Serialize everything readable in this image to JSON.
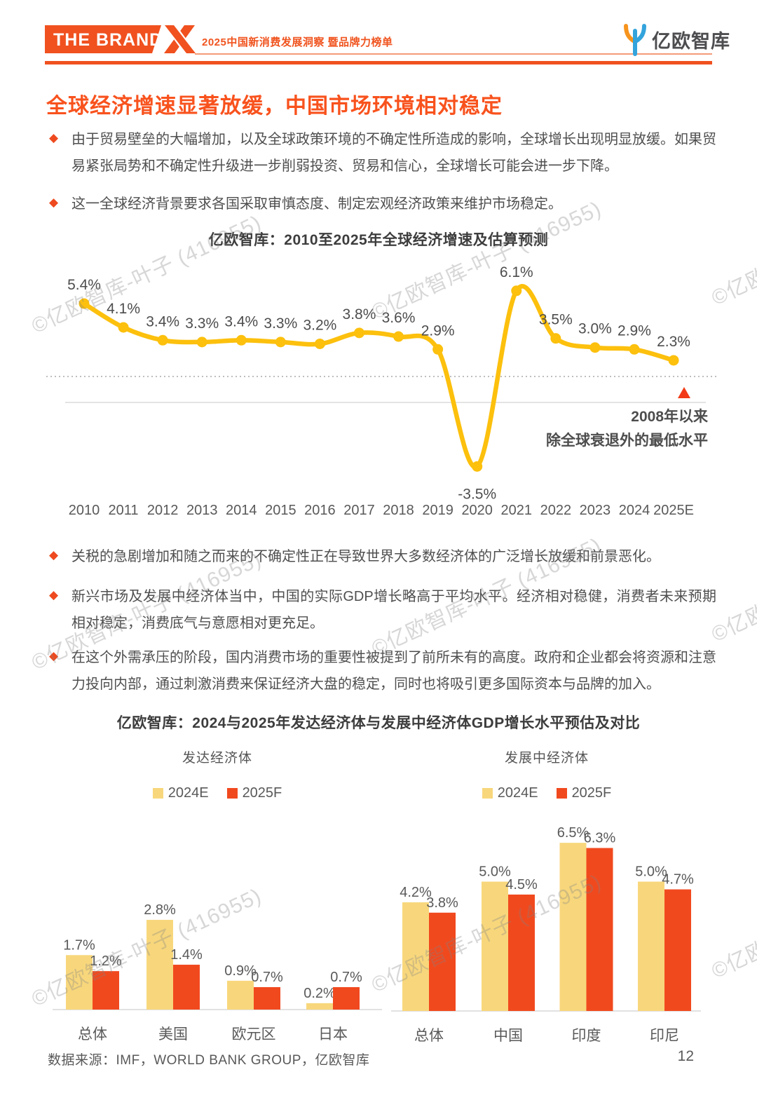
{
  "header": {
    "logo_text": "THE BRAND",
    "doc_subtitle": "2025中国新消费发展洞察 暨品牌力榜单",
    "brand_right": "亿欧智库"
  },
  "page_title": "全球经济增速显著放缓，中国市场环境相对稳定",
  "icons": {
    "bullet": "◆"
  },
  "bullets": [
    "由于贸易壁垒的大幅增加，以及全球政策环境的不确定性所造成的影响，全球增长出现明显放缓。如果贸易紧张局势和不确定性升级进一步削弱投资、贸易和信心，全球增长可能会进一步下降。",
    "这一全球经济背景要求各国采取审慎态度、制定宏观经济政策来维护市场稳定。",
    "关税的急剧增加和随之而来的不确定性正在导致世界大多数经济体的广泛增长放缓和前景恶化。",
    "新兴市场及发展中经济体当中，中国的实际GDP增长略高于平均水平。经济相对稳健，消费者未来预期相对稳定，消费底气与意愿相对更充足。",
    "在这个外需承压的阶段，国内消费市场的重要性被提到了前所未有的高度。政府和企业都会将资源和注意力投向内部，通过刺激消费来保证经济大盘的稳定，同时也将吸引更多国际资本与品牌的加入。"
  ],
  "bar_section_title": "亿欧智库：2024与2025年发达经济体与发展中经济体GDP增长水平预估及对比",
  "chart_data": [
    {
      "type": "line",
      "title": "亿欧智库：2010至2025年全球经济增速及估算预测",
      "categories": [
        "2010",
        "2011",
        "2012",
        "2013",
        "2014",
        "2015",
        "2016",
        "2017",
        "2018",
        "2019",
        "2020",
        "2021",
        "2022",
        "2023",
        "2024",
        "2025E"
      ],
      "series": [
        {
          "name": "全球经济增速",
          "values": [
            5.4,
            4.1,
            3.4,
            3.3,
            3.4,
            3.3,
            3.2,
            3.8,
            3.6,
            2.9,
            -3.5,
            6.1,
            3.5,
            3.0,
            2.9,
            2.3
          ]
        }
      ],
      "ylim": [
        -4.5,
        7
      ],
      "grid": false,
      "line_color": "#FCC00D",
      "annotation": {
        "lines": [
          "2008年以来",
          "除全球衰退外的最低水平"
        ],
        "marker": "triangle-up",
        "marker_color": "#F23A18"
      }
    },
    {
      "type": "bar",
      "group_title": "发达经济体",
      "legend": [
        "2024E",
        "2025F"
      ],
      "categories": [
        "总体",
        "美国",
        "欧元区",
        "日本"
      ],
      "series": [
        {
          "name": "2024E",
          "values": [
            1.7,
            2.8,
            0.9,
            0.2
          ]
        },
        {
          "name": "2025F",
          "values": [
            1.2,
            1.4,
            0.7,
            0.7
          ]
        }
      ],
      "ylim": [
        0,
        3.2
      ],
      "colors": [
        "#F8D77C",
        "#F1491E"
      ]
    },
    {
      "type": "bar",
      "group_title": "发展中经济体",
      "legend": [
        "2024E",
        "2025F"
      ],
      "categories": [
        "总体",
        "中国",
        "印度",
        "印尼"
      ],
      "series": [
        {
          "name": "2024E",
          "values": [
            4.2,
            5.0,
            6.5,
            5.0
          ]
        },
        {
          "name": "2025F",
          "values": [
            3.8,
            4.5,
            6.3,
            4.7
          ]
        }
      ],
      "ylim": [
        0,
        7.5
      ],
      "colors": [
        "#F8D77C",
        "#F1491E"
      ]
    }
  ],
  "footer": {
    "source": "数据来源：IMF，WORLD BANK GROUP，亿欧智库",
    "page_number": "12"
  },
  "watermark": "©亿欧智库-叶子 (416955)",
  "colors": {
    "brand_orange": "#F0511F",
    "title_orange": "#F8521D",
    "line_yellow": "#FCC00D",
    "bar_yellow": "#F8D77C",
    "bar_orange": "#F1491E"
  }
}
